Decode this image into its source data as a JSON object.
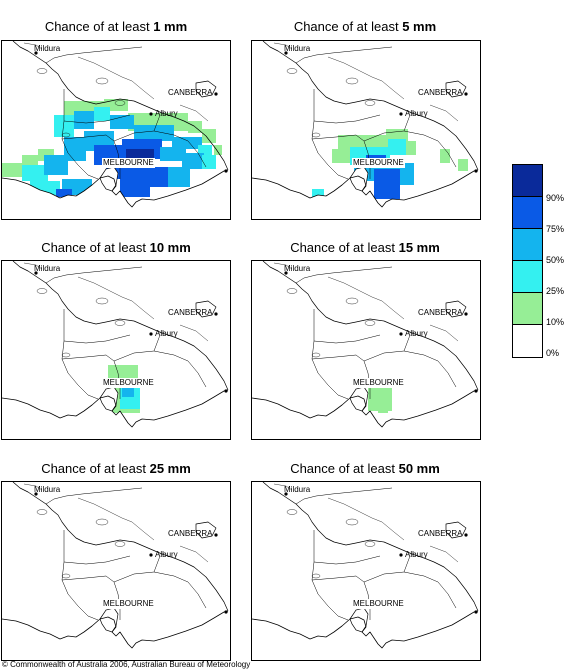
{
  "panels": [
    {
      "title_prefix": "Chance of at least ",
      "title_amount": "1 mm"
    },
    {
      "title_prefix": "Chance of at least ",
      "title_amount": "5 mm"
    },
    {
      "title_prefix": "Chance of at least ",
      "title_amount": "10 mm"
    },
    {
      "title_prefix": "Chance of at least ",
      "title_amount": "15 mm"
    },
    {
      "title_prefix": "Chance of at least ",
      "title_amount": "25 mm"
    },
    {
      "title_prefix": "Chance of at least ",
      "title_amount": "50 mm"
    }
  ],
  "places": {
    "mildura": "Mildura",
    "canberra": "CANBERRA",
    "albury": "Albury",
    "melbourne": "MELBOURNE"
  },
  "legend": {
    "labels": [
      "90%",
      "75%",
      "50%",
      "25%",
      "10%",
      "0%"
    ],
    "colors": [
      "#0a2a9a",
      "#0a5ae6",
      "#14b4ee",
      "#34f0f0",
      "#96ee96",
      "#ffffff"
    ]
  },
  "footer": "© Commonwealth of Australia 2006, Australian Bureau of Meteorology"
}
